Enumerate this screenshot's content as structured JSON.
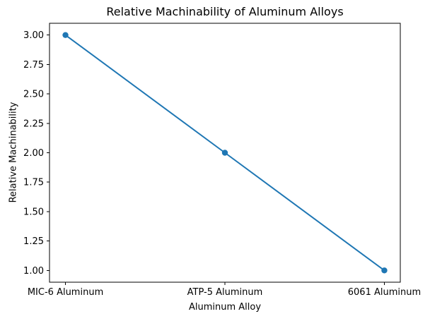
{
  "chart_data": {
    "type": "line",
    "title": "Relative Machinability of Aluminum Alloys",
    "xlabel": "Aluminum Alloy",
    "ylabel": "Relative Machinability",
    "categories": [
      "MIC-6 Aluminum",
      "ATP-5 Aluminum",
      "6061 Aluminum"
    ],
    "values": [
      3,
      2,
      1
    ],
    "ytick_labels": [
      "1.00",
      "1.25",
      "1.50",
      "1.75",
      "2.00",
      "2.25",
      "2.50",
      "2.75",
      "3.00"
    ],
    "yticks": [
      1.0,
      1.25,
      1.5,
      1.75,
      2.0,
      2.25,
      2.5,
      2.75,
      3.0
    ],
    "ylim": [
      0.9,
      3.1
    ],
    "xlim": [
      -0.1,
      2.1
    ],
    "grid": false,
    "legend": "none",
    "line_color": "#1f77b4",
    "marker": "circle",
    "marker_color": "#1f77b4",
    "axis_color": "#000000",
    "background_color": "#ffffff"
  }
}
